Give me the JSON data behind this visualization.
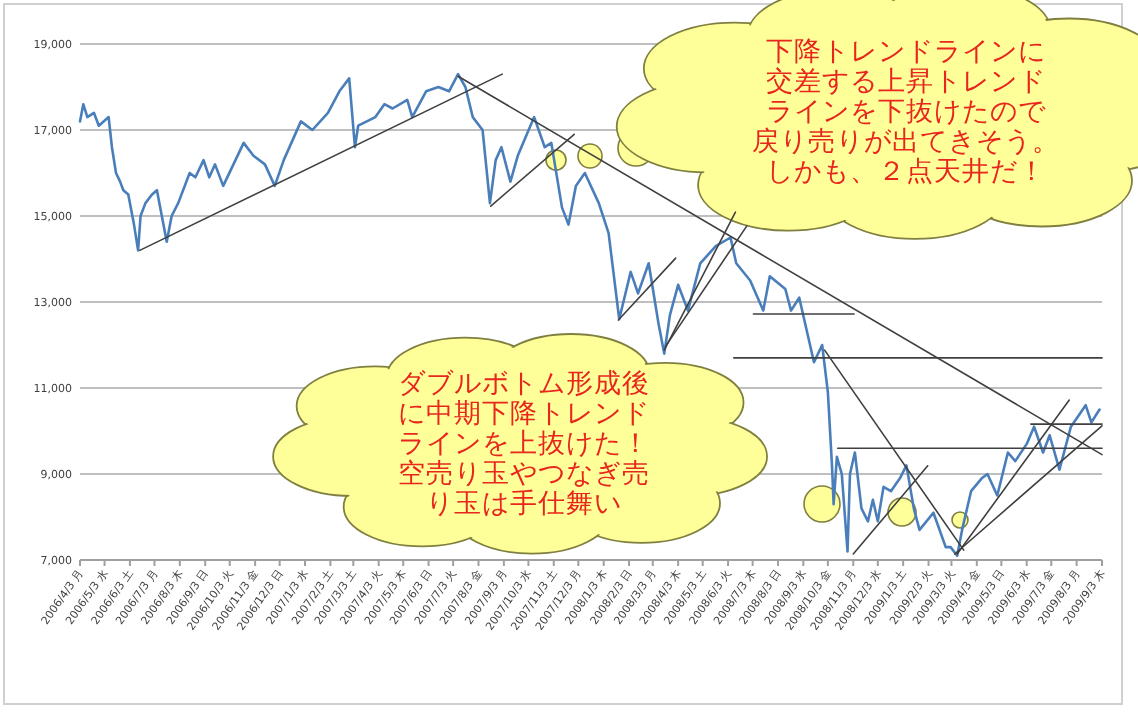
{
  "chart_data": {
    "type": "line",
    "annotations": [
      "下降トレンドラインに交差する上昇トレンドラインを下抜けたので戻り売りが出てきそう。しかも、２点天井だ！",
      "ダブルボトム形成後に中期下降トレンドラインを上抜けた！空売り玉やつなぎ売り玉は手仕舞い"
    ],
    "series": [
      {
        "color": "#4a7ebb",
        "x": [
          "2006-04-03",
          "2006-04-07",
          "2006-04-12",
          "2006-04-20",
          "2006-04-26",
          "2006-05-08",
          "2006-05-12",
          "2006-05-17",
          "2006-05-22",
          "2006-05-26",
          "2006-06-01",
          "2006-06-08",
          "2006-06-13",
          "2006-06-16",
          "2006-06-22",
          "2006-06-30",
          "2006-07-06",
          "2006-07-18",
          "2006-07-24",
          "2006-08-01",
          "2006-08-15",
          "2006-08-22",
          "2006-09-01",
          "2006-09-08",
          "2006-09-15",
          "2006-09-25",
          "2006-10-10",
          "2006-10-20",
          "2006-11-01",
          "2006-11-15",
          "2006-11-27",
          "2006-12-08",
          "2006-12-29",
          "2007-01-12",
          "2007-01-31",
          "2007-02-14",
          "2007-02-26",
          "2007-03-05",
          "2007-03-09",
          "2007-03-30",
          "2007-04-10",
          "2007-04-20",
          "2007-05-08",
          "2007-05-14",
          "2007-05-31",
          "2007-06-15",
          "2007-06-28",
          "2007-07-09",
          "2007-07-18",
          "2007-07-27",
          "2007-08-08",
          "2007-08-17",
          "2007-08-24",
          "2007-08-31",
          "2007-09-11",
          "2007-09-20",
          "2007-10-10",
          "2007-10-23",
          "2007-10-31",
          "2007-11-13",
          "2007-11-21",
          "2007-11-30",
          "2007-12-11",
          "2007-12-28",
          "2008-01-09",
          "2008-01-22",
          "2008-02-05",
          "2008-02-14",
          "2008-02-27",
          "2008-03-10",
          "2008-03-17",
          "2008-03-24",
          "2008-04-03",
          "2008-04-15",
          "2008-04-30",
          "2008-05-19",
          "2008-06-06",
          "2008-06-13",
          "2008-06-30",
          "2008-07-16",
          "2008-07-24",
          "2008-08-12",
          "2008-08-19",
          "2008-08-29",
          "2008-09-16",
          "2008-09-26",
          "2008-10-03",
          "2008-10-08",
          "2008-10-10",
          "2008-10-14",
          "2008-10-20",
          "2008-10-27",
          "2008-10-30",
          "2008-11-05",
          "2008-11-13",
          "2008-11-21",
          "2008-11-27",
          "2008-12-03",
          "2008-12-10",
          "2008-12-19",
          "2008-12-30",
          "2009-01-07",
          "2009-01-16",
          "2009-01-23",
          "2009-02-09",
          "2009-02-24",
          "2009-03-02",
          "2009-03-10",
          "2009-03-16",
          "2009-03-27",
          "2009-04-09",
          "2009-04-16",
          "2009-04-28",
          "2009-05-11",
          "2009-05-20",
          "2009-06-03",
          "2009-06-12",
          "2009-06-23",
          "2009-07-01",
          "2009-07-13",
          "2009-07-27",
          "2009-08-07",
          "2009-08-14",
          "2009-08-21",
          "2009-08-31"
        ],
        "values": [
          17200,
          17600,
          17300,
          17400,
          17100,
          17300,
          16600,
          16000,
          15800,
          15600,
          15500,
          14800,
          14200,
          15000,
          15300,
          15500,
          15600,
          14400,
          15000,
          15300,
          16000,
          15900,
          16300,
          15900,
          16200,
          15700,
          16300,
          16700,
          16400,
          16200,
          15700,
          16300,
          17200,
          17000,
          17400,
          17900,
          18200,
          16600,
          17100,
          17300,
          17600,
          17500,
          17700,
          17300,
          17900,
          18000,
          17900,
          18300,
          18000,
          17300,
          17000,
          15300,
          16300,
          16600,
          15800,
          16400,
          17300,
          16600,
          16700,
          15200,
          14800,
          15700,
          16000,
          15300,
          14600,
          12600,
          13700,
          13200,
          13900,
          12500,
          11800,
          12700,
          13400,
          12800,
          13900,
          14300,
          14500,
          13900,
          13500,
          12800,
          13600,
          13300,
          12800,
          13100,
          11600,
          12000,
          10900,
          9200,
          8300,
          9400,
          9000,
          7200,
          9000,
          9500,
          8200,
          7900,
          8400,
          7900,
          8700,
          8600,
          8900,
          9200,
          8200,
          7700,
          8100,
          7300,
          7300,
          7100,
          7700,
          8600,
          8900,
          9000,
          8500,
          9500,
          9300,
          9700,
          10100,
          9500,
          9900,
          9100,
          10100,
          10400,
          10600,
          10200,
          10500
        ]
      },
      {
        "color": "#404040",
        "x": [
          "2006-06-15",
          "2007-09-01"
        ],
        "values": [
          14200,
          18300
        ]
      },
      {
        "color": "#404040",
        "x": [
          "2007-07-09",
          "2009-09-03"
        ],
        "values": [
          18250,
          9450
        ]
      },
      {
        "color": "#404040",
        "x": [
          "2007-08-18",
          "2007-11-28"
        ],
        "values": [
          15230,
          16900
        ]
      },
      {
        "color": "#404040",
        "x": [
          "2008-01-21",
          "2008-03-31"
        ],
        "values": [
          12580,
          14020
        ]
      },
      {
        "color": "#404040",
        "x": [
          "2008-03-17",
          "2008-06-12"
        ],
        "values": [
          11880,
          15090
        ]
      },
      {
        "color": "#404040",
        "x": [
          "2008-03-19",
          "2008-06-26"
        ],
        "values": [
          11980,
          14770
        ]
      },
      {
        "color": "#404040",
        "x": [
          "2008-07-04",
          "2008-11-04"
        ],
        "values": [
          12720,
          12720
        ]
      },
      {
        "color": "#404040",
        "x": [
          "2008-06-10",
          "2009-09-03"
        ],
        "values": [
          11700,
          11700
        ]
      },
      {
        "color": "#404040",
        "x": [
          "2008-09-29",
          "2009-03-18"
        ],
        "values": [
          11880,
          7230
        ]
      },
      {
        "color": "#404040",
        "x": [
          "2008-10-15",
          "2009-09-03"
        ],
        "values": [
          9600,
          9600
        ]
      },
      {
        "color": "#404040",
        "x": [
          "2009-06-08",
          "2009-09-03"
        ],
        "values": [
          10160,
          10160
        ]
      },
      {
        "color": "#404040",
        "x": [
          "2008-11-03",
          "2009-02-02"
        ],
        "values": [
          7140,
          9190
        ]
      },
      {
        "color": "#404040",
        "x": [
          "2009-03-07",
          "2009-09-03"
        ],
        "values": [
          7140,
          10120
        ]
      },
      {
        "color": "#404040",
        "x": [
          "2009-03-10",
          "2009-07-25"
        ],
        "values": [
          7140,
          10720
        ]
      }
    ],
    "xlim": [
      "2006-04-03",
      "2009-09-03"
    ],
    "xticks": [
      {
        "value": "2006-04-03",
        "label": "2006/4/3 月"
      },
      {
        "value": "2006-05-03",
        "label": "2006/5/3 水"
      },
      {
        "value": "2006-06-03",
        "label": "2006/6/3 土"
      },
      {
        "value": "2006-07-03",
        "label": "2006/7/3 月"
      },
      {
        "value": "2006-08-03",
        "label": "2006/8/3 木"
      },
      {
        "value": "2006-09-03",
        "label": "2006/9/3 日"
      },
      {
        "value": "2006-10-03",
        "label": "2006/10/3 火"
      },
      {
        "value": "2006-11-03",
        "label": "2006/11/3 金"
      },
      {
        "value": "2006-12-03",
        "label": "2006/12/3 日"
      },
      {
        "value": "2007-01-03",
        "label": "2007/1/3 水"
      },
      {
        "value": "2007-02-03",
        "label": "2007/2/3 土"
      },
      {
        "value": "2007-03-03",
        "label": "2007/3/3 土"
      },
      {
        "value": "2007-04-03",
        "label": "2007/4/3 火"
      },
      {
        "value": "2007-05-03",
        "label": "2007/5/3 木"
      },
      {
        "value": "2007-06-03",
        "label": "2007/6/3 日"
      },
      {
        "value": "2007-07-03",
        "label": "2007/7/3 火"
      },
      {
        "value": "2007-08-03",
        "label": "2007/8/3 金"
      },
      {
        "value": "2007-09-03",
        "label": "2007/9/3 月"
      },
      {
        "value": "2007-10-03",
        "label": "2007/10/3 水"
      },
      {
        "value": "2007-11-03",
        "label": "2007/11/3 土"
      },
      {
        "value": "2007-12-03",
        "label": "2007/12/3 月"
      },
      {
        "value": "2008-01-03",
        "label": "2008/1/3 木"
      },
      {
        "value": "2008-02-03",
        "label": "2008/2/3 日"
      },
      {
        "value": "2008-03-03",
        "label": "2008/3/3 月"
      },
      {
        "value": "2008-04-03",
        "label": "2008/4/3 木"
      },
      {
        "value": "2008-05-03",
        "label": "2008/5/3 土"
      },
      {
        "value": "2008-06-03",
        "label": "2008/6/3 火"
      },
      {
        "value": "2008-07-03",
        "label": "2008/7/3 木"
      },
      {
        "value": "2008-08-03",
        "label": "2008/8/3 日"
      },
      {
        "value": "2008-09-03",
        "label": "2008/9/3 水"
      },
      {
        "value": "2008-10-03",
        "label": "2008/10/3 金"
      },
      {
        "value": "2008-11-03",
        "label": "2008/11/3 月"
      },
      {
        "value": "2008-12-03",
        "label": "2008/12/3 水"
      },
      {
        "value": "2009-01-03",
        "label": "2009/1/3 土"
      },
      {
        "value": "2009-02-03",
        "label": "2009/2/3 火"
      },
      {
        "value": "2009-03-03",
        "label": "2009/3/3 火"
      },
      {
        "value": "2009-04-03",
        "label": "2009/4/3 金"
      },
      {
        "value": "2009-05-03",
        "label": "2009/5/3 日"
      },
      {
        "value": "2009-06-03",
        "label": "2009/6/3 水"
      },
      {
        "value": "2009-07-03",
        "label": "2009/7/3 金"
      },
      {
        "value": "2009-08-03",
        "label": "2009/8/3 月"
      },
      {
        "value": "2009-09-03",
        "label": "2009/9/3 木"
      }
    ],
    "ylim": [
      7000,
      19000
    ],
    "yticks": [
      {
        "value": 7000,
        "label": "7,000"
      },
      {
        "value": 9000,
        "label": "9,000"
      },
      {
        "value": 11000,
        "label": "11,000"
      },
      {
        "value": 13000,
        "label": "13,000"
      },
      {
        "value": 15000,
        "label": "15,000"
      },
      {
        "value": 17000,
        "label": "17,000"
      },
      {
        "value": 19000,
        "label": "19,000"
      }
    ],
    "grid": "y",
    "marker": "none",
    "line_style": "solid"
  }
}
